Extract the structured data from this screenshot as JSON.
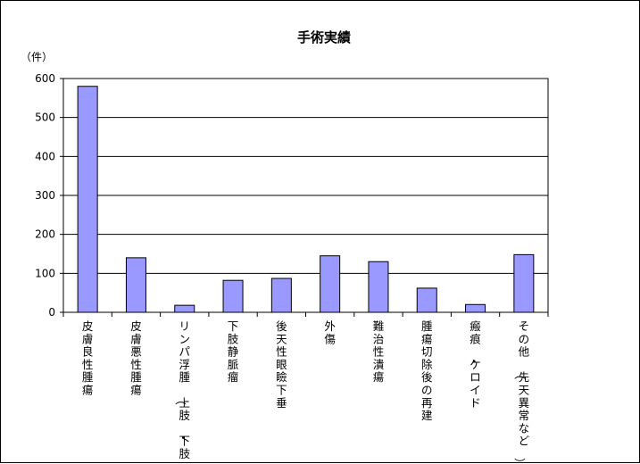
{
  "chart_data": {
    "type": "bar",
    "title": "手術実績",
    "ylabel": "（件）",
    "xlabel": "",
    "ylim": [
      0,
      600
    ],
    "yticks": [
      "0",
      "100",
      "200",
      "300",
      "400",
      "500",
      "600"
    ],
    "grid": true,
    "bar_color": "#9999ff",
    "categories": [
      "皮膚良性腫瘍",
      "皮膚悪性腫瘍",
      "リンパ浮腫（上肢・下肢）",
      "下肢静脈瘤",
      "後天性眼瞼下垂",
      "外傷",
      "難治性潰瘍",
      "腫瘍切除後の再建",
      "瘢痕・ケロイド",
      "その他（先天異常など）"
    ],
    "values": [
      580,
      140,
      18,
      82,
      87,
      145,
      130,
      62,
      20,
      148
    ]
  }
}
